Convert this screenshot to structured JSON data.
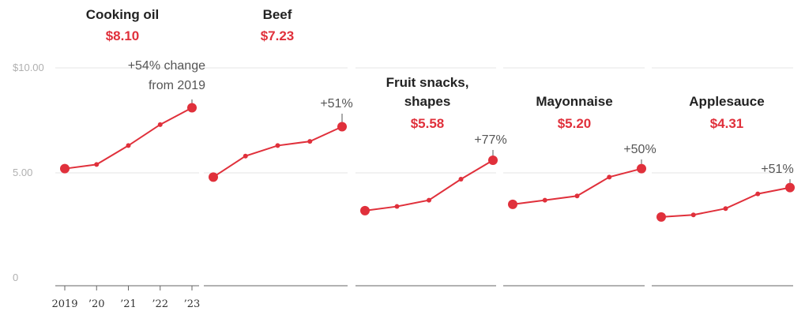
{
  "colors": {
    "accent": "#e0303b",
    "grid": "#e6e6e6",
    "axis": "#666666"
  },
  "chart_data": {
    "type": "line",
    "y_axis": {
      "ticks": [
        0,
        5,
        10
      ],
      "tick_labels": [
        "0",
        "5.00",
        "$10.00"
      ],
      "ylim": [
        0,
        10.5
      ]
    },
    "x": [
      "2019",
      "2020",
      "2021",
      "2022",
      "2023"
    ],
    "x_tick_labels": [
      "2019",
      "’20",
      "’21",
      "’22",
      "’23"
    ],
    "annotation_suffix": "change from 2019",
    "series": [
      {
        "name": "Cooking oil",
        "price": "$8.10",
        "change": "+54%",
        "values": [
          5.2,
          5.4,
          6.3,
          7.3,
          8.1
        ]
      },
      {
        "name": "Beef",
        "price": "$7.23",
        "change": "+51%",
        "values": [
          4.8,
          5.8,
          6.3,
          6.5,
          7.2
        ]
      },
      {
        "name": "Fruit snacks, shapes",
        "price": "$5.58",
        "change": "+77%",
        "values": [
          3.2,
          3.4,
          3.7,
          4.7,
          5.6
        ]
      },
      {
        "name": "Mayonnaise",
        "price": "$5.20",
        "change": "+50%",
        "values": [
          3.5,
          3.7,
          3.9,
          4.8,
          5.2
        ]
      },
      {
        "name": "Applesauce",
        "price": "$4.31",
        "change": "+51%",
        "values": [
          2.9,
          3.0,
          3.3,
          4.0,
          4.3
        ]
      }
    ]
  }
}
